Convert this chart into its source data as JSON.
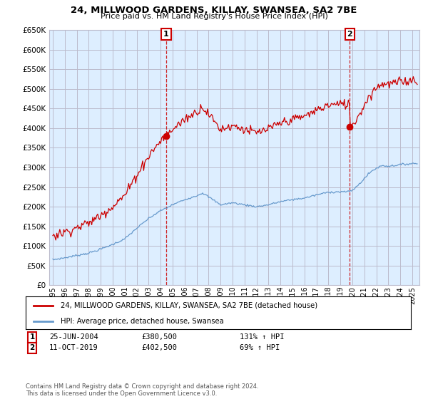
{
  "title": "24, MILLWOOD GARDENS, KILLAY, SWANSEA, SA2 7BE",
  "subtitle": "Price paid vs. HM Land Registry's House Price Index (HPI)",
  "address_label": "24, MILLWOOD GARDENS, KILLAY, SWANSEA, SA2 7BE (detached house)",
  "hpi_label": "HPI: Average price, detached house, Swansea",
  "sale1_date": "25-JUN-2004",
  "sale1_price": 380500,
  "sale1_pct": "131% ↑ HPI",
  "sale2_date": "11-OCT-2019",
  "sale2_price": 402500,
  "sale2_pct": "69% ↑ HPI",
  "footnote": "Contains HM Land Registry data © Crown copyright and database right 2024.\nThis data is licensed under the Open Government Licence v3.0.",
  "ylim": [
    0,
    650000
  ],
  "yticks": [
    0,
    50000,
    100000,
    150000,
    200000,
    250000,
    300000,
    350000,
    400000,
    450000,
    500000,
    550000,
    600000,
    650000
  ],
  "red_color": "#cc0000",
  "blue_color": "#6699cc",
  "plot_bg_color": "#ddeeff",
  "background_color": "#ffffff",
  "grid_color": "#bbbbcc"
}
